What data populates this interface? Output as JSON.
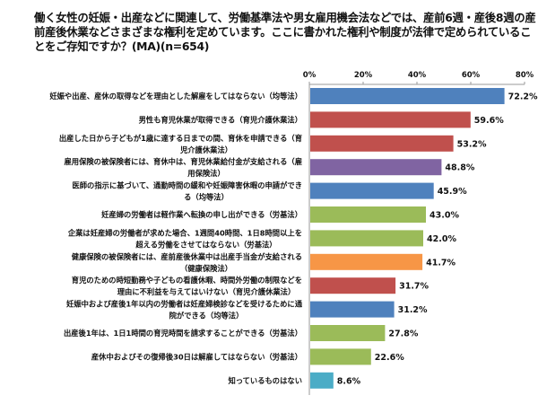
{
  "chart_data": {
    "type": "bar",
    "orientation": "horizontal",
    "title": "働く女性の妊娠・出産などに関連して、労働基準法や男女雇用機会法などでは、産前6週・産後8週の産前産後休業などさまざまな権利を定めています。ここに書かれた権利や制度が法律で定められていることをご存知ですか？(MA)(n=654)",
    "xlim": [
      0,
      80
    ],
    "ticks": [
      "0%",
      "20%",
      "40%",
      "60%",
      "80%"
    ],
    "categories": [
      [
        "妊娠や出産、産休の取得などを理由とした解雇をしてはならない（均等法）"
      ],
      [
        "男性も育児休業が取得できる（育児介護休業法）"
      ],
      [
        "出産した日から子どもが1歳に達する日までの間、育休を申請できる（育",
        "児介護休業法）"
      ],
      [
        "雇用保険の被保険者には、育休中は、育児休業給付金が支給される（雇",
        "用保険法）"
      ],
      [
        "医師の指示に基づいて、通勤時間の緩和や妊娠障害休暇の申請ができ",
        "る（均等法）"
      ],
      [
        "妊産婦の労働者は軽作業へ転換の申し出ができる（労基法）"
      ],
      [
        "企業は妊産婦の労働者が求めた場合、1週間40時間、1日8時間以上を",
        "超える労働をさせてはならない（労基法）"
      ],
      [
        "健康保険の被保険者には、産前産後休業中は出産手当金が支給される",
        "（健康保険法）"
      ],
      [
        "育児のための時短勤務や子どもの看護休暇、時間外労働の制限などを",
        "理由に不利益を与えてはいけない（育児介護休業法）"
      ],
      [
        "妊娠中および産後1年以内の労働者は妊産婦検診などを受けるために通",
        "院ができる（均等法）"
      ],
      [
        "出産後1年は、1日1時間の育児時間を請求することができる（労基法）"
      ],
      [
        "産休中およびその復帰後30日は解雇してはならない（労基法）"
      ],
      [
        "知っているものはない"
      ]
    ],
    "values": [
      72.2,
      59.6,
      53.2,
      48.8,
      45.9,
      43.0,
      42.0,
      41.7,
      31.7,
      31.2,
      27.8,
      22.6,
      8.6
    ],
    "value_labels": [
      "72.2%",
      "59.6%",
      "53.2%",
      "48.8%",
      "45.9%",
      "43.0%",
      "42.0%",
      "41.7%",
      "31.7%",
      "31.2%",
      "27.8%",
      "22.6%",
      "8.6%"
    ],
    "colors": [
      "#4F81BD",
      "#C0504D",
      "#C0504D",
      "#8064A2",
      "#4F81BD",
      "#9BBB59",
      "#9BBB59",
      "#F79646",
      "#C0504D",
      "#4F81BD",
      "#9BBB59",
      "#9BBB59",
      "#4BACC6"
    ],
    "grid": false
  }
}
